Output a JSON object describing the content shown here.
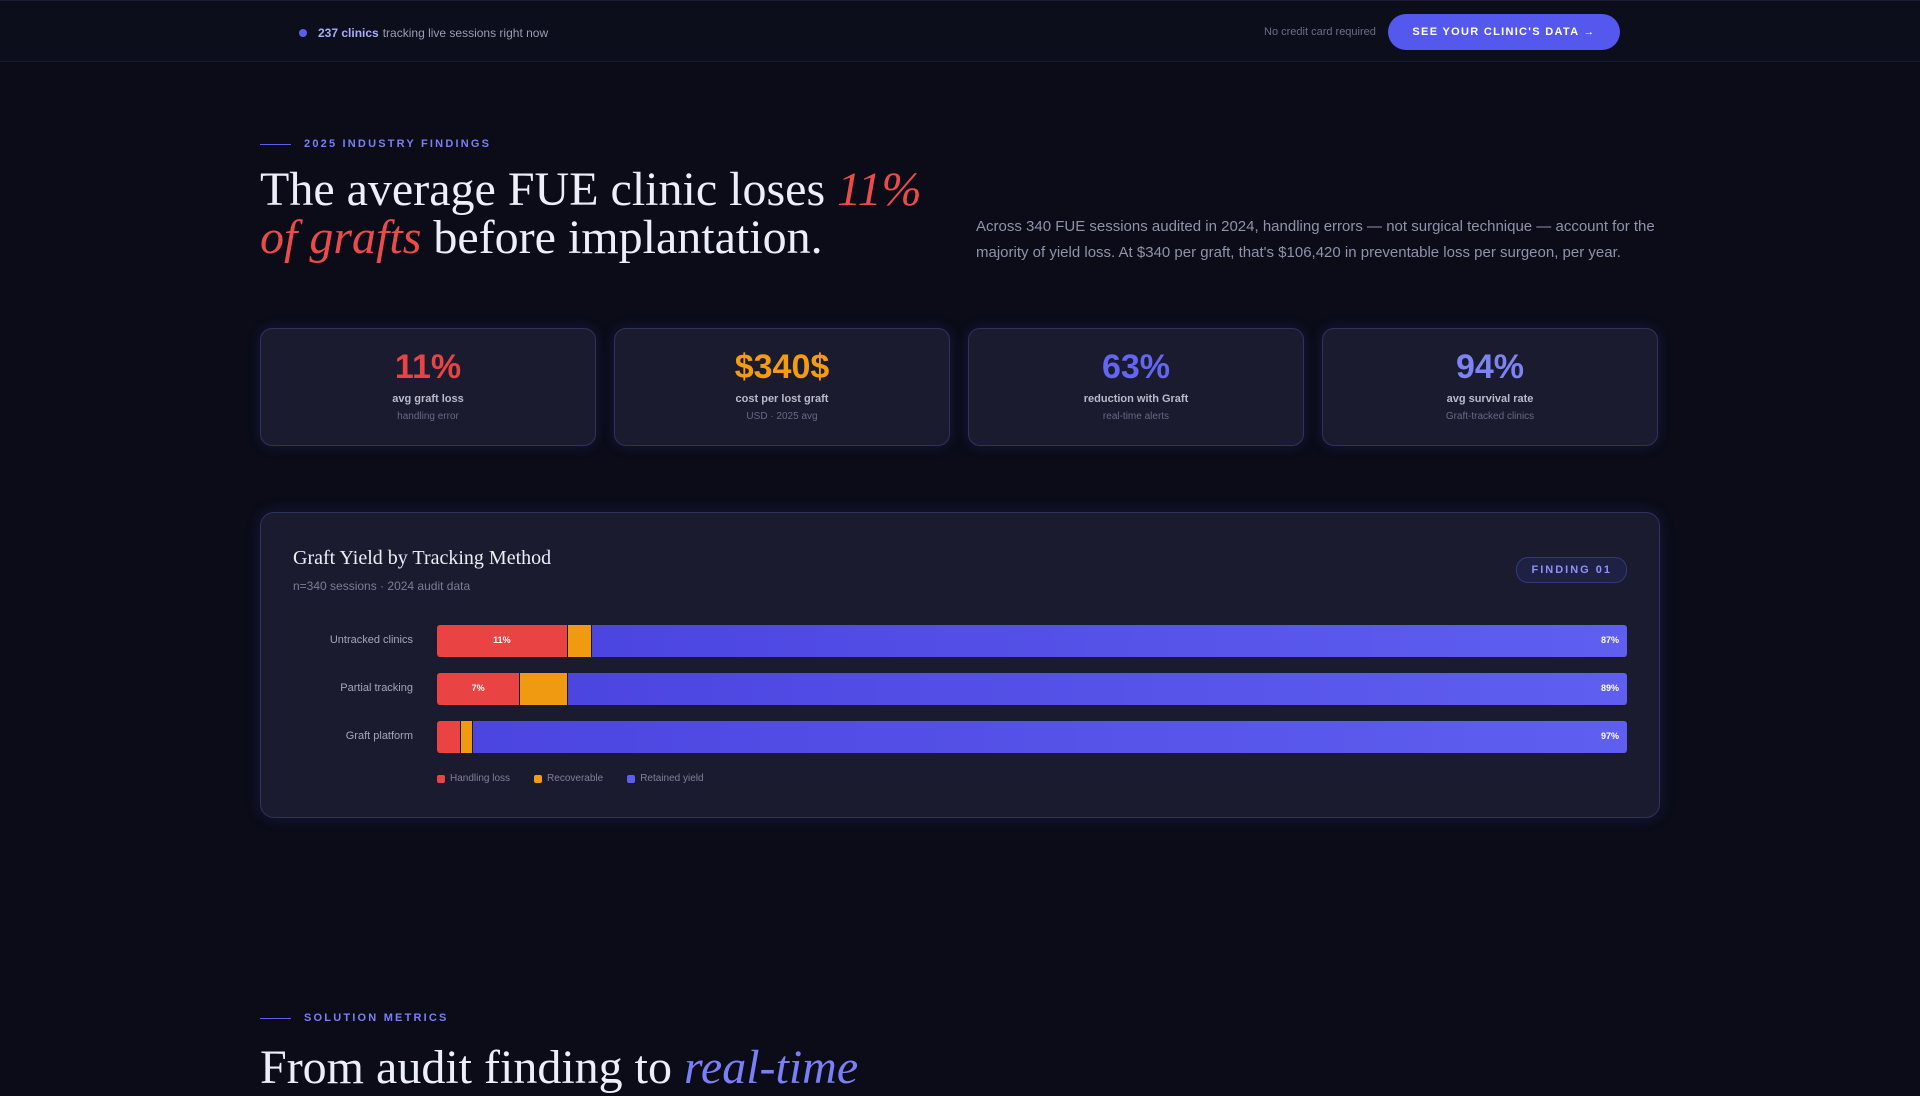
{
  "topbar": {
    "live_count": "237 clinics",
    "live_text": "tracking live sessions right now",
    "no_card": "No credit card required",
    "cta_label": "SEE YOUR CLINIC'S DATA →"
  },
  "findings": {
    "eyebrow": "2025 INDUSTRY FINDINGS",
    "headline_a": "The average FUE clinic loses ",
    "headline_highlight": "11% of grafts",
    "headline_b": " before implantation.",
    "lede": "Across 340 FUE sessions audited in 2024, handling errors — not surgical technique — account for the majority of yield loss. At $340 per graft, that's $106,420 in preventable loss per surgeon, per year."
  },
  "stats": [
    {
      "value": "11%",
      "label": "avg graft loss",
      "sub": "handling error",
      "color": "#ea4343"
    },
    {
      "value": "$340$",
      "label": "cost per lost graft",
      "sub": "USD · 2025 avg",
      "color": "#f39c12"
    },
    {
      "value": "63%",
      "label": "reduction with Graft",
      "sub": "real-time alerts",
      "color": "#6366f1"
    },
    {
      "value": "94%",
      "label": "avg survival rate",
      "sub": "Graft-tracked clinics",
      "color": "#7c84f2"
    }
  ],
  "chart": {
    "title": "Graft Yield by Tracking Method",
    "subtitle": "n=340 sessions · 2024 audit data",
    "badge": "FINDING 01"
  },
  "chart_data": {
    "type": "bar",
    "orientation": "horizontal-stacked",
    "categories": [
      "Untracked clinics",
      "Partial tracking",
      "Graft platform"
    ],
    "series": [
      {
        "name": "Handling loss",
        "values": [
          11,
          7,
          2
        ],
        "labels": [
          "11%",
          "7%",
          ""
        ],
        "color": "#ea4343"
      },
      {
        "name": "Recoverable",
        "values": [
          2,
          4,
          1
        ],
        "labels": [
          "",
          "",
          ""
        ],
        "color": "#f39c12"
      },
      {
        "name": "Retained yield",
        "values": [
          87,
          89,
          97
        ],
        "labels": [
          "87%",
          "89%",
          "97%"
        ],
        "color": "#5b5ff0"
      }
    ],
    "xlim": [
      0,
      100
    ],
    "legend": "bottom-left"
  },
  "solution": {
    "eyebrow": "SOLUTION METRICS",
    "headline_a": "From audit finding to ",
    "headline_highlight": "real-time"
  }
}
